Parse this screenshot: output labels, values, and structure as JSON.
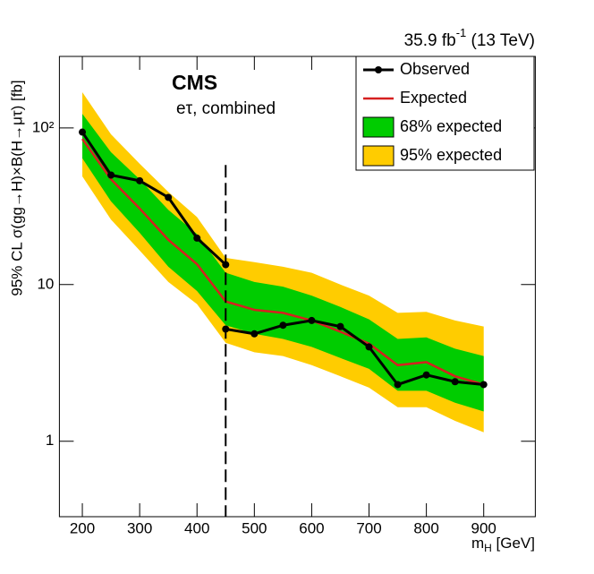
{
  "chart_data": {
    "type": "limit",
    "experiment": "CMS",
    "subtitle": "eτ, combined",
    "lumi": {
      "main": "35.9 fb",
      "sup": "-1",
      "rest": " (13 TeV)"
    },
    "x_label": {
      "main": "m",
      "sub": "H",
      "unit": " [GeV]"
    },
    "y_label": "95% CL σ(gg→H)×B(H→μτ) [fb]",
    "log_y": true,
    "xlim": [
      160,
      990
    ],
    "xticks": [
      200,
      300,
      400,
      500,
      600,
      700,
      800,
      900
    ],
    "ylim": [
      0.33,
      286
    ],
    "yticks": [
      1,
      10,
      {
        "value": 100,
        "label": "10²"
      }
    ],
    "divider": {
      "x": 450,
      "ytop": 58
    },
    "x": [
      200,
      250,
      300,
      350,
      400,
      450,
      500,
      550,
      600,
      650,
      700,
      750,
      800,
      850,
      900
    ],
    "series": [
      {
        "name": "95% expected",
        "kind": "band",
        "color": "#ffcc00",
        "upper": [
          169,
          91,
          59,
          39,
          27,
          14.8,
          13.9,
          13,
          11.9,
          10,
          8.5,
          6.6,
          6.7,
          5.9,
          5.4
        ],
        "lower": [
          49,
          26,
          16.5,
          10.4,
          7.5,
          4.25,
          3.7,
          3.5,
          3.06,
          2.6,
          2.2,
          1.65,
          1.65,
          1.35,
          1.14
        ]
      },
      {
        "name": "68% expected",
        "kind": "band",
        "color": "#00cc00",
        "upper": [
          123,
          70,
          47,
          30,
          21,
          11.9,
          10.4,
          9.7,
          8.5,
          7.2,
          6.0,
          4.5,
          4.6,
          3.9,
          3.5
        ],
        "lower": [
          64,
          34,
          21.4,
          13,
          9.1,
          5.5,
          4.85,
          4.5,
          4.0,
          3.4,
          2.9,
          2.1,
          2.1,
          1.76,
          1.55
        ]
      },
      {
        "name": "Expected",
        "kind": "line",
        "color": "#d62020",
        "values": [
          85,
          47,
          30.6,
          19.3,
          13.5,
          7.8,
          6.9,
          6.6,
          5.9,
          5.0,
          4.2,
          3.06,
          3.2,
          2.6,
          2.3
        ]
      },
      {
        "name": "Observed",
        "kind": "points",
        "color": "#000000",
        "x": [
          200,
          250,
          300,
          350,
          400,
          450,
          450,
          450,
          500,
          550,
          600,
          650,
          700,
          750,
          800,
          850,
          900
        ],
        "values": [
          94,
          50,
          46,
          36,
          19.8,
          13.4,
          null,
          5.2,
          4.85,
          5.5,
          5.9,
          5.4,
          4.0,
          2.3,
          2.65,
          2.4,
          2.3
        ]
      }
    ],
    "legend_order": [
      3,
      2,
      1,
      0
    ]
  }
}
